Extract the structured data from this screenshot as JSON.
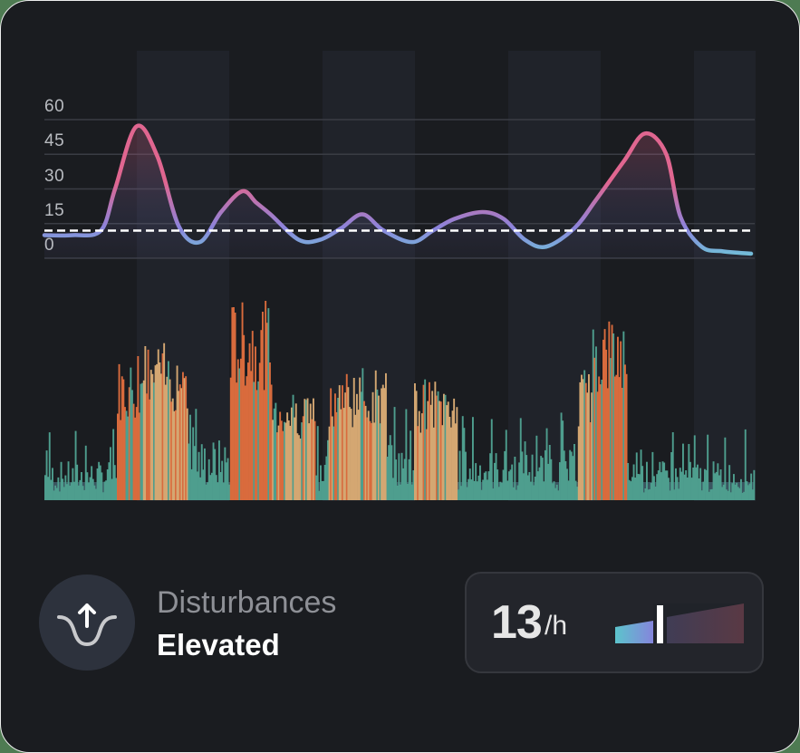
{
  "card": {
    "title": "Disturbances",
    "status": "Elevated"
  },
  "metric": {
    "value": "13",
    "unit": "/h",
    "meter_position_pct": 34
  },
  "icon": {
    "name": "disturbance-arrow-up-icon"
  },
  "colors": {
    "background": "#1A1C20",
    "band": "#20232A",
    "line_low": "#6FB8D8",
    "line_mid": "#8C84DC",
    "line_high": "#E06690",
    "bar_high": "#D96B3D",
    "bar_mid": "#D4A772",
    "bar_low": "#4E9E8E",
    "bar_base": "#3A5560",
    "meter_low": "#5CC4CC",
    "meter_high": "#5A3944"
  },
  "chart_data": [
    {
      "type": "line",
      "title": "",
      "ylabel": "",
      "xlabel": "",
      "y_ticks": [
        "60",
        "45",
        "30",
        "15",
        "0"
      ],
      "ylim": [
        0,
        60
      ],
      "grid": true,
      "threshold": 12,
      "threshold_style": "dashed white",
      "x": [
        0,
        0.04,
        0.08,
        0.1,
        0.13,
        0.16,
        0.19,
        0.22,
        0.25,
        0.28,
        0.3,
        0.32,
        0.36,
        0.39,
        0.42,
        0.45,
        0.48,
        0.52,
        0.55,
        0.58,
        0.62,
        0.65,
        0.68,
        0.71,
        0.75,
        0.78,
        0.82,
        0.85,
        0.88,
        0.9,
        0.93,
        0.96,
        1.0
      ],
      "values": [
        10,
        10,
        12,
        30,
        57,
        44,
        14,
        7,
        20,
        29,
        24,
        19,
        8,
        8,
        13,
        19,
        12,
        7,
        12,
        17,
        20,
        17,
        8,
        5,
        13,
        25,
        42,
        54,
        45,
        18,
        5,
        3,
        2
      ]
    },
    {
      "type": "bar",
      "title": "",
      "description": "Dense per-sample activity bars colored by intensity (teal=low, tan=medium, orange=high)",
      "ylim": [
        0,
        100
      ],
      "segments": [
        {
          "from": 0.0,
          "to": 0.1,
          "level": "low",
          "peak": 35
        },
        {
          "from": 0.1,
          "to": 0.13,
          "level": "high",
          "peak": 70
        },
        {
          "from": 0.13,
          "to": 0.2,
          "level": "mid",
          "peak": 78
        },
        {
          "from": 0.2,
          "to": 0.26,
          "level": "low",
          "peak": 55
        },
        {
          "from": 0.26,
          "to": 0.32,
          "level": "high",
          "peak": 98
        },
        {
          "from": 0.32,
          "to": 0.38,
          "level": "mid",
          "peak": 55
        },
        {
          "from": 0.38,
          "to": 0.4,
          "level": "low",
          "peak": 45
        },
        {
          "from": 0.4,
          "to": 0.48,
          "level": "mid",
          "peak": 65
        },
        {
          "from": 0.48,
          "to": 0.52,
          "level": "low",
          "peak": 50
        },
        {
          "from": 0.52,
          "to": 0.58,
          "level": "mid",
          "peak": 60
        },
        {
          "from": 0.58,
          "to": 0.75,
          "level": "low",
          "peak": 45
        },
        {
          "from": 0.75,
          "to": 0.77,
          "level": "mid",
          "peak": 65
        },
        {
          "from": 0.77,
          "to": 0.82,
          "level": "high",
          "peak": 92
        },
        {
          "from": 0.82,
          "to": 1.0,
          "level": "low",
          "peak": 35
        }
      ]
    }
  ]
}
